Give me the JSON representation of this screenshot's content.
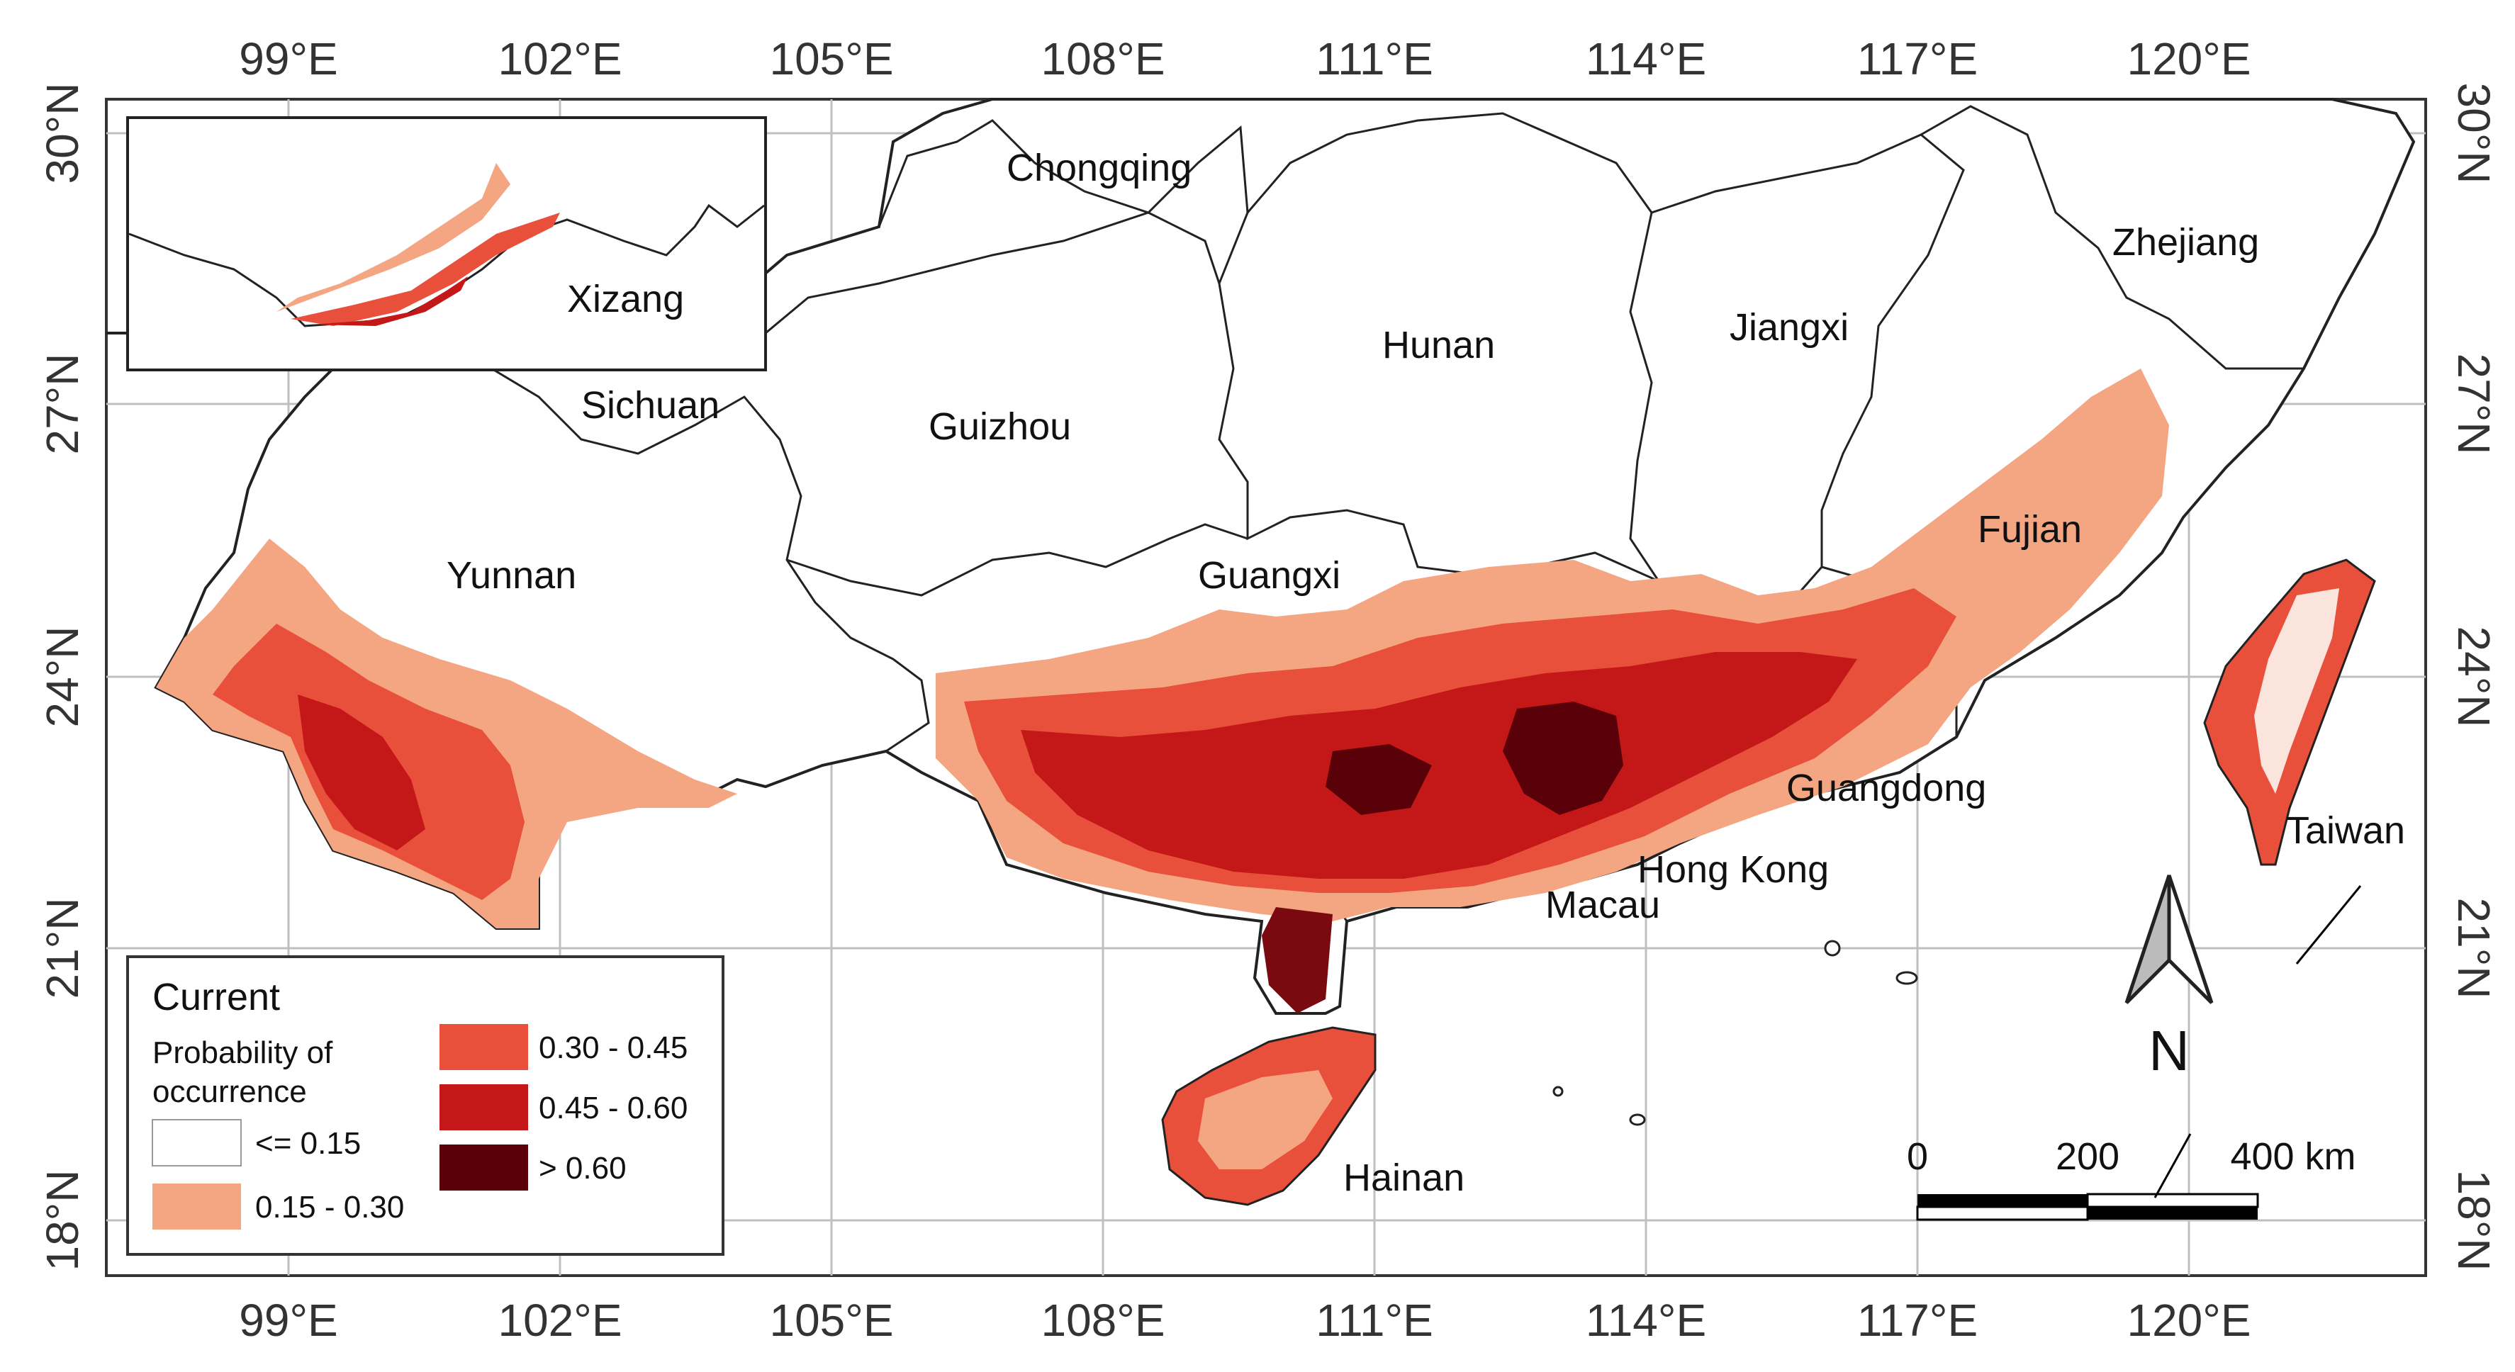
{
  "map": {
    "lon_ticks": [
      "99°E",
      "102°E",
      "105°E",
      "108°E",
      "111°E",
      "114°E",
      "117°E",
      "120°E"
    ],
    "lat_ticks": [
      "30°N",
      "27°N",
      "24°N",
      "21°N",
      "18°N"
    ],
    "provinces": {
      "chongqing": "Chongqing",
      "sichuan": "Sichuan",
      "guizhou": "Guizhou",
      "yunnan": "Yunnan",
      "hunan": "Hunan",
      "jiangxi": "Jiangxi",
      "zhejiang": "Zhejiang",
      "fujian": "Fujian",
      "guangxi": "Guangxi",
      "guangdong": "Guangdong",
      "hong_kong": "Hong Kong",
      "macau": "Macau",
      "taiwan": "Taiwan",
      "hainan": "Hainan",
      "xizang": "Xizang"
    },
    "legend": {
      "title": "Current",
      "subtitle_line1": "Probability of",
      "subtitle_line2": "occurrence",
      "classes": [
        {
          "label": "<= 0.15",
          "color": "#ffffff"
        },
        {
          "label": "0.15 - 0.30",
          "color": "#f4a582"
        },
        {
          "label": "0.30 - 0.45",
          "color": "#e8503c"
        },
        {
          "label": "0.45 - 0.60",
          "color": "#c41818"
        },
        {
          "label": "> 0.60",
          "color": "#5a0008"
        }
      ]
    },
    "north_arrow": "N",
    "scale_bar": {
      "start": "0",
      "mid": "200",
      "end": "400 km"
    }
  }
}
